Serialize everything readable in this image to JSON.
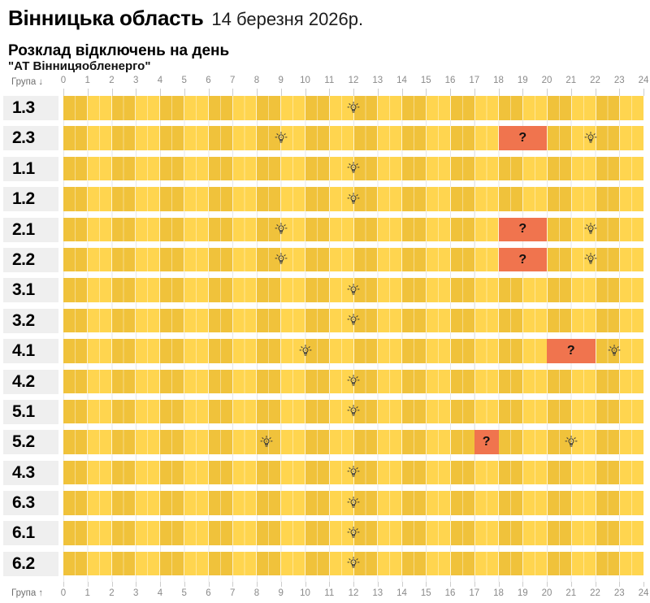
{
  "header": {
    "region": "Вінницька область",
    "date": "14 березня 2026р.",
    "subtitle": "Розклад відключень на день",
    "company": "\"АТ Вінницяобленерго\""
  },
  "axis": {
    "label_top": "Група ↓",
    "label_bottom": "Група ↑"
  },
  "colors": {
    "hour_even": "#F0C23B",
    "hour_odd": "#FFD54F",
    "question_bg": "#F0744E",
    "label_bg": "#EFEFEF"
  },
  "chart_data": {
    "type": "heatmap",
    "title": "Розклад відключень на день",
    "region": "Вінницька область",
    "date": "14 березня 2026р.",
    "company": "\"АТ Вінницяобленерго\"",
    "xlabel_hours_range": [
      0,
      24
    ],
    "x_ticks": [
      0,
      1,
      2,
      3,
      4,
      5,
      6,
      7,
      8,
      9,
      10,
      11,
      12,
      13,
      14,
      15,
      16,
      17,
      18,
      19,
      20,
      21,
      22,
      23,
      24
    ],
    "cell_meaning": {
      "yellow": "power-on",
      "question_orange": "possible-outage",
      "bulb": "light-marker"
    },
    "rows": [
      {
        "group": "1.3",
        "events": [
          {
            "type": "bulb",
            "at": 12
          }
        ]
      },
      {
        "group": "2.3",
        "events": [
          {
            "type": "bulb",
            "at": 9
          },
          {
            "type": "question",
            "from": 18,
            "to": 20
          },
          {
            "type": "bulb",
            "at": 21.8
          }
        ]
      },
      {
        "group": "1.1",
        "events": [
          {
            "type": "bulb",
            "at": 12
          }
        ]
      },
      {
        "group": "1.2",
        "events": [
          {
            "type": "bulb",
            "at": 12
          }
        ]
      },
      {
        "group": "2.1",
        "events": [
          {
            "type": "bulb",
            "at": 9
          },
          {
            "type": "question",
            "from": 18,
            "to": 20
          },
          {
            "type": "bulb",
            "at": 21.8
          }
        ]
      },
      {
        "group": "2.2",
        "events": [
          {
            "type": "bulb",
            "at": 9
          },
          {
            "type": "question",
            "from": 18,
            "to": 20
          },
          {
            "type": "bulb",
            "at": 21.8
          }
        ]
      },
      {
        "group": "3.1",
        "events": [
          {
            "type": "bulb",
            "at": 12
          }
        ]
      },
      {
        "group": "3.2",
        "events": [
          {
            "type": "bulb",
            "at": 12
          }
        ]
      },
      {
        "group": "4.1",
        "events": [
          {
            "type": "bulb",
            "at": 10
          },
          {
            "type": "question",
            "from": 20,
            "to": 22
          },
          {
            "type": "bulb",
            "at": 22.8
          }
        ]
      },
      {
        "group": "4.2",
        "events": [
          {
            "type": "bulb",
            "at": 12
          }
        ]
      },
      {
        "group": "5.1",
        "events": [
          {
            "type": "bulb",
            "at": 12
          }
        ]
      },
      {
        "group": "5.2",
        "events": [
          {
            "type": "bulb",
            "at": 8.4
          },
          {
            "type": "question",
            "from": 17,
            "to": 18
          },
          {
            "type": "bulb",
            "at": 21
          }
        ]
      },
      {
        "group": "4.3",
        "events": [
          {
            "type": "bulb",
            "at": 12
          }
        ]
      },
      {
        "group": "6.3",
        "events": [
          {
            "type": "bulb",
            "at": 12
          }
        ]
      },
      {
        "group": "6.1",
        "events": [
          {
            "type": "bulb",
            "at": 12
          }
        ]
      },
      {
        "group": "6.2",
        "events": [
          {
            "type": "bulb",
            "at": 12
          }
        ]
      }
    ]
  }
}
